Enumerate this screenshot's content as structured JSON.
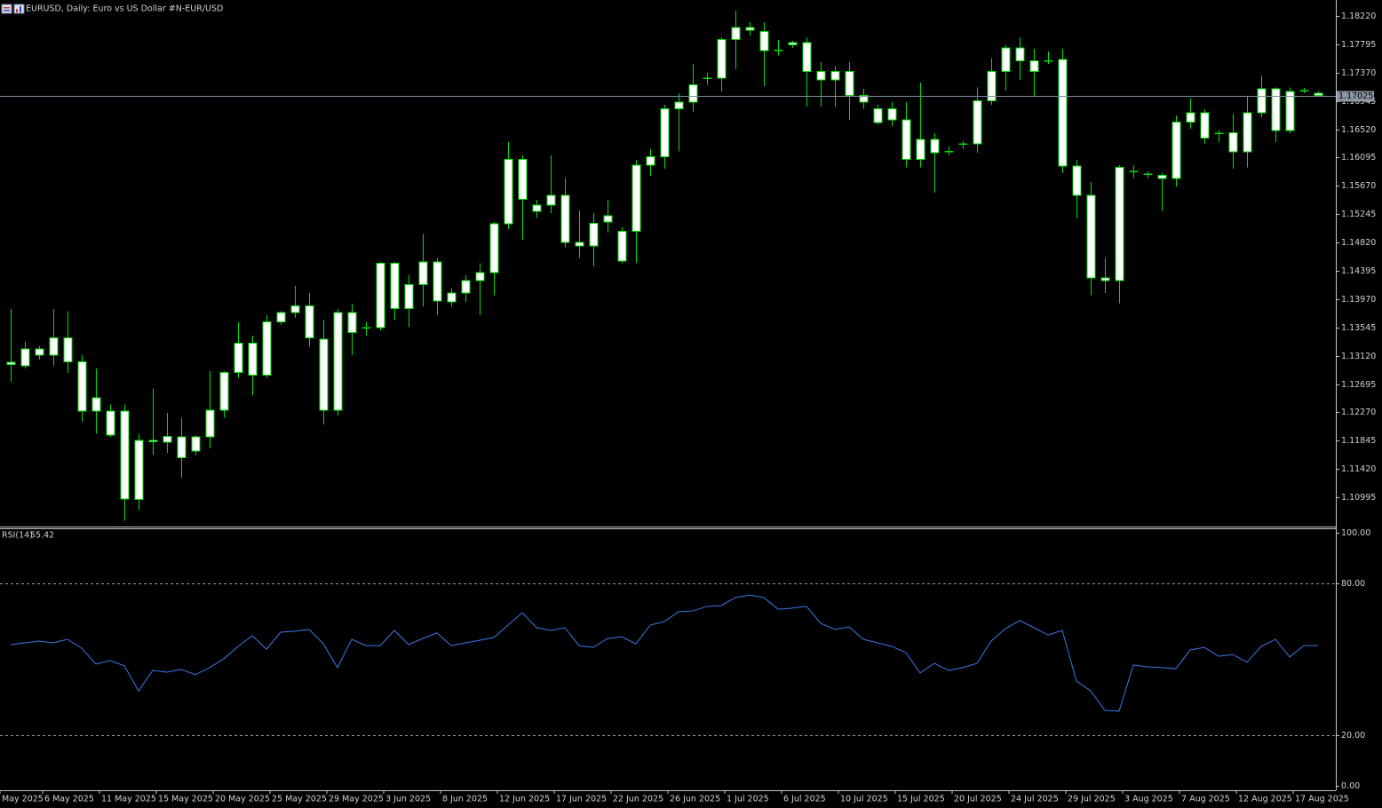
{
  "chart_data": [
    {
      "type": "candlestick",
      "title": "EURUSD, Daily:  Euro vs US Dollar #N-EUR/USD",
      "categories": [
        "May 2025",
        null,
        null,
        "6 May 2025",
        null,
        null,
        null,
        "11 May 2025",
        null,
        null,
        null,
        "15 May 2025",
        null,
        null,
        null,
        "20 May 2025",
        null,
        null,
        null,
        "25 May 2025",
        null,
        null,
        null,
        "29 May 2025",
        null,
        null,
        null,
        "3 Jun 2025",
        null,
        null,
        null,
        "8 Jun 2025",
        null,
        null,
        null,
        "12 Jun 2025",
        null,
        null,
        null,
        "17 Jun 2025",
        null,
        null,
        null,
        "22 Jun 2025",
        null,
        null,
        null,
        "26 Jun 2025",
        null,
        null,
        null,
        "1 Jul 2025",
        null,
        null,
        null,
        "6 Jul 2025",
        null,
        null,
        null,
        "10 Jul 2025",
        null,
        null,
        null,
        "15 Jul 2025",
        null,
        null,
        null,
        "20 Jul 2025",
        null,
        null,
        null,
        "24 Jul 2025",
        null,
        null,
        null,
        "29 Jul 2025",
        null,
        null,
        null,
        "3 Aug 2025",
        null,
        null,
        null,
        "7 Aug 2025",
        null,
        null,
        null,
        "12 Aug 2025",
        null,
        null,
        null,
        "17 Aug 2025",
        null
      ],
      "open": [
        1.1299,
        1.1297,
        1.1322,
        1.1313,
        1.1339,
        1.1303,
        1.1229,
        1.1229,
        1.1229,
        1.1096,
        1.1185,
        1.1182,
        1.119,
        1.1169,
        1.119,
        1.123,
        1.1287,
        1.1331,
        1.1283,
        1.1363,
        1.1377,
        1.1387,
        1.1337,
        1.123,
        1.1377,
        1.1354,
        1.1354,
        1.1451,
        1.1383,
        1.1419,
        1.1453,
        1.1393,
        1.1406,
        1.1425,
        1.1437,
        1.151,
        1.1607,
        1.1529,
        1.1538,
        1.1553,
        1.1482,
        1.1477,
        1.1513,
        1.1454,
        1.1499,
        1.1598,
        1.1611,
        1.1683,
        1.1693,
        1.1729,
        1.1729,
        1.1787,
        1.1805,
        1.1799,
        1.1771,
        1.1779,
        1.1782,
        1.1739,
        1.1726,
        1.1739,
        1.1703,
        1.1683,
        1.1666,
        1.1666,
        1.1607,
        1.1637,
        1.1619,
        1.163,
        1.163,
        1.1695,
        1.1739,
        1.1774,
        1.1755,
        1.1755,
        1.1757,
        1.1597,
        1.1553,
        1.1429,
        1.1425,
        1.1589,
        1.1585,
        1.1583,
        1.1578,
        1.1663,
        1.1677,
        1.1646,
        1.1647,
        1.1618,
        1.1677,
        1.1713,
        1.165,
        1.171,
        1.1706
      ],
      "high": [
        1.1382,
        1.1333,
        1.1326,
        1.1382,
        1.1379,
        1.1313,
        1.1293,
        1.1239,
        1.1239,
        1.1195,
        1.1263,
        1.1226,
        1.1219,
        1.1193,
        1.1289,
        1.1289,
        1.1363,
        1.1342,
        1.1373,
        1.1379,
        1.1417,
        1.1406,
        1.1366,
        1.1382,
        1.139,
        1.1363,
        1.1453,
        1.1453,
        1.1433,
        1.1495,
        1.1459,
        1.1413,
        1.1433,
        1.1451,
        1.1513,
        1.1633,
        1.1613,
        1.1546,
        1.1613,
        1.1579,
        1.153,
        1.1526,
        1.1546,
        1.1505,
        1.1606,
        1.1622,
        1.1689,
        1.1706,
        1.175,
        1.1737,
        1.179,
        1.183,
        1.1813,
        1.1813,
        1.1786,
        1.1785,
        1.179,
        1.1753,
        1.1746,
        1.1753,
        1.1713,
        1.1689,
        1.1693,
        1.1693,
        1.1722,
        1.1646,
        1.1626,
        1.1635,
        1.1715,
        1.1759,
        1.1779,
        1.179,
        1.1773,
        1.1769,
        1.1773,
        1.1606,
        1.1573,
        1.1459,
        1.1598,
        1.1598,
        1.1589,
        1.1587,
        1.1673,
        1.1699,
        1.1682,
        1.1651,
        1.1675,
        1.1702,
        1.1733,
        1.1715,
        1.1715,
        1.1714,
        1.1709
      ],
      "low": [
        1.1273,
        1.1293,
        1.1306,
        1.1297,
        1.1286,
        1.1213,
        1.1195,
        1.119,
        1.1064,
        1.108,
        1.1163,
        1.1166,
        1.1129,
        1.1163,
        1.1173,
        1.1219,
        1.1279,
        1.1253,
        1.1279,
        1.1359,
        1.1369,
        1.1326,
        1.1209,
        1.1222,
        1.1313,
        1.1342,
        1.135,
        1.1366,
        1.1355,
        1.1386,
        1.1373,
        1.1386,
        1.1393,
        1.1373,
        1.1403,
        1.1502,
        1.1486,
        1.1519,
        1.1526,
        1.1475,
        1.1459,
        1.1446,
        1.1497,
        1.1451,
        1.1451,
        1.1582,
        1.1593,
        1.1619,
        1.1679,
        1.1719,
        1.1709,
        1.1742,
        1.1793,
        1.1717,
        1.1763,
        1.1774,
        1.1686,
        1.1686,
        1.1686,
        1.1666,
        1.1683,
        1.1659,
        1.1657,
        1.1595,
        1.1595,
        1.1557,
        1.1613,
        1.1622,
        1.1617,
        1.1689,
        1.171,
        1.1726,
        1.1702,
        1.175,
        1.1586,
        1.1519,
        1.1403,
        1.1406,
        1.1391,
        1.1579,
        1.1579,
        1.1529,
        1.1566,
        1.1653,
        1.163,
        1.1633,
        1.1593,
        1.1595,
        1.167,
        1.1633,
        1.1646,
        1.1706,
        1.1702
      ],
      "close": [
        1.1302,
        1.1322,
        1.1313,
        1.1339,
        1.1303,
        1.1229,
        1.1249,
        1.1193,
        1.1097,
        1.1185,
        1.1183,
        1.1191,
        1.1159,
        1.119,
        1.123,
        1.1287,
        1.1331,
        1.1283,
        1.1363,
        1.1377,
        1.1387,
        1.1339,
        1.123,
        1.1377,
        1.1347,
        1.1354,
        1.1451,
        1.1383,
        1.1419,
        1.1453,
        1.1394,
        1.1406,
        1.1425,
        1.1437,
        1.151,
        1.1607,
        1.1547,
        1.1538,
        1.1553,
        1.1482,
        1.1477,
        1.1511,
        1.1522,
        1.1499,
        1.1598,
        1.1611,
        1.1683,
        1.1693,
        1.1719,
        1.1729,
        1.1787,
        1.1805,
        1.1801,
        1.177,
        1.1771,
        1.1782,
        1.1739,
        1.1726,
        1.1739,
        1.1703,
        1.1693,
        1.1662,
        1.1683,
        1.1607,
        1.1637,
        1.1617,
        1.1619,
        1.163,
        1.1695,
        1.1739,
        1.1774,
        1.1755,
        1.1739,
        1.1755,
        1.1597,
        1.1553,
        1.1429,
        1.1425,
        1.1595,
        1.1589,
        1.1585,
        1.1578,
        1.1663,
        1.1677,
        1.1639,
        1.1646,
        1.1618,
        1.1677,
        1.1713,
        1.165,
        1.1709,
        1.171,
        1.17025
      ],
      "color": "#00e000",
      "body_color": "#ffffff",
      "ylim": [
        1.1057,
        1.1846
      ],
      "yticks": [
        {
          "value": 1.1822,
          "label": "1.18220"
        },
        {
          "value": 1.17795,
          "label": "1.17795"
        },
        {
          "value": 1.1737,
          "label": "1.17370"
        },
        {
          "value": 1.16945,
          "label": "1.16945"
        },
        {
          "value": 1.1652,
          "label": "1.16520"
        },
        {
          "value": 1.16095,
          "label": "1.16095"
        },
        {
          "value": 1.1567,
          "label": "1.15670"
        },
        {
          "value": 1.15245,
          "label": "1.15245"
        },
        {
          "value": 1.1482,
          "label": "1.14820"
        },
        {
          "value": 1.14395,
          "label": "1.14395"
        },
        {
          "value": 1.1397,
          "label": "1.13970"
        },
        {
          "value": 1.13545,
          "label": "1.13545"
        },
        {
          "value": 1.1312,
          "label": "1.13120"
        },
        {
          "value": 1.12695,
          "label": "1.12695"
        },
        {
          "value": 1.1227,
          "label": "1.12270"
        },
        {
          "value": 1.11845,
          "label": "1.11845"
        },
        {
          "value": 1.1142,
          "label": "1.11420"
        },
        {
          "value": 1.10995,
          "label": "1.10995"
        }
      ],
      "current_price": {
        "value": 1.17025,
        "label": "1.17025"
      },
      "grid": false
    },
    {
      "type": "line",
      "series": [
        {
          "name": "RSI(14)",
          "color": "#3c78e6",
          "values": [
            55.8,
            56.5,
            57.2,
            56.5,
            57.9,
            54.4,
            48.1,
            49.5,
            47.4,
            37.5,
            45.6,
            44.9,
            46.0,
            43.9,
            46.7,
            50.2,
            55.1,
            59.3,
            54.0,
            60.7,
            61.1,
            61.8,
            56.1,
            46.7,
            57.9,
            55.4,
            55.4,
            61.4,
            55.8,
            58.2,
            60.4,
            55.4,
            56.5,
            57.5,
            58.6,
            63.5,
            68.4,
            62.5,
            61.4,
            62.5,
            55.4,
            54.7,
            58.2,
            58.9,
            56.1,
            63.5,
            64.9,
            68.8,
            69.1,
            70.9,
            71.2,
            74.4,
            75.4,
            74.4,
            69.8,
            70.2,
            70.9,
            64.2,
            61.8,
            62.8,
            57.9,
            56.5,
            55.1,
            52.6,
            44.6,
            48.4,
            45.6,
            46.7,
            48.4,
            57.2,
            62.1,
            65.3,
            62.5,
            59.6,
            61.4,
            41.4,
            37.5,
            29.8,
            29.5,
            47.7,
            47.0,
            46.7,
            46.3,
            53.7,
            54.7,
            51.2,
            51.9,
            48.8,
            55.1,
            57.9,
            50.9,
            55.4,
            55.42
          ]
        }
      ],
      "ylim": [
        0,
        100
      ],
      "yticks": [
        {
          "value": 100,
          "label": "100.00"
        },
        {
          "value": 80,
          "label": "80.00"
        },
        {
          "value": 20,
          "label": "20.00"
        },
        {
          "value": 0,
          "label": "0.00"
        }
      ],
      "grid": true
    }
  ]
}
